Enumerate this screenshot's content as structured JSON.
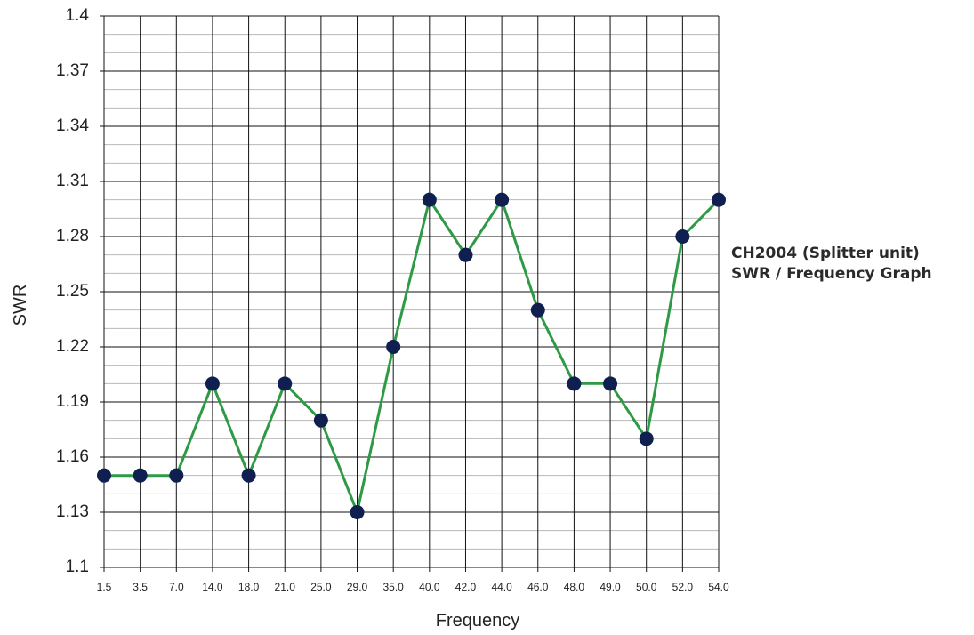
{
  "chart_data": {
    "type": "line",
    "title": "",
    "xlabel": "Frequency",
    "ylabel": "SWR",
    "categories": [
      "1.5",
      "3.5",
      "7.0",
      "14.0",
      "18.0",
      "21.0",
      "25.0",
      "29.0",
      "35.0",
      "40.0",
      "42.0",
      "44.0",
      "46.0",
      "48.0",
      "49.0",
      "50.0",
      "52.0",
      "54.0"
    ],
    "values": [
      1.15,
      1.15,
      1.15,
      1.2,
      1.15,
      1.2,
      1.18,
      1.13,
      1.22,
      1.3,
      1.27,
      1.3,
      1.24,
      1.2,
      1.2,
      1.17,
      1.28,
      1.3
    ],
    "ylim": [
      1.1,
      1.4
    ],
    "yticks": [
      "1.1",
      "1.13",
      "1.16",
      "1.19",
      "1.22",
      "1.25",
      "1.28",
      "1.31",
      "1.34",
      "1.37",
      "1.4"
    ],
    "grid": true,
    "colors": {
      "line": "#2e9a45",
      "marker": "#0f1f4f",
      "grid_major": "#111111",
      "grid_minor": "#b8b8b8"
    }
  },
  "caption": {
    "line1": "CH2004 (Splitter unit)",
    "line2": "SWR / Frequency Graph"
  }
}
